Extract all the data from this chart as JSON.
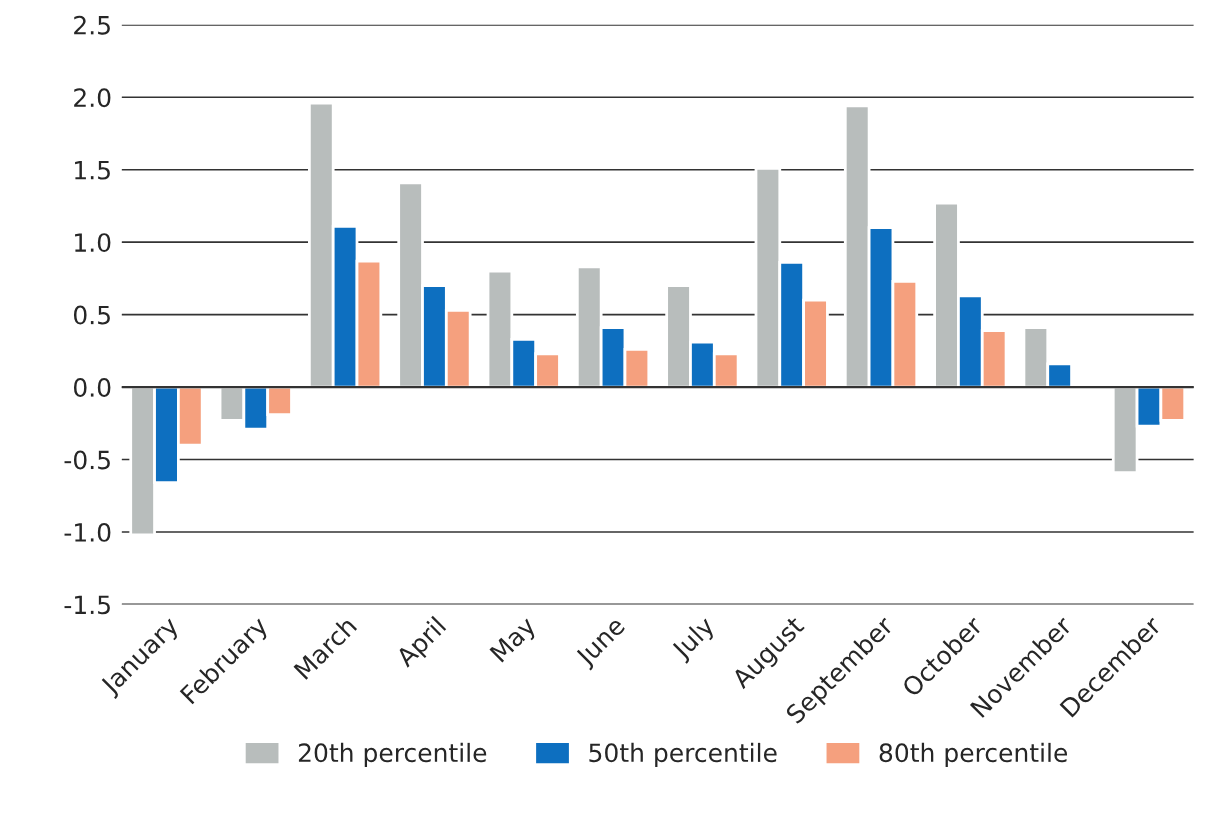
{
  "chart_data": {
    "type": "bar",
    "categories": [
      "January",
      "February",
      "March",
      "April",
      "May",
      "June",
      "July",
      "August",
      "September",
      "October",
      "November",
      "December"
    ],
    "series": [
      {
        "name": "20th percentile",
        "color": "#b8bdbc",
        "values": [
          -1.02,
          -0.23,
          1.96,
          1.41,
          0.8,
          0.83,
          0.7,
          1.51,
          1.94,
          1.27,
          0.41,
          -0.59
        ]
      },
      {
        "name": "50th percentile",
        "color": "#0d6fc0",
        "values": [
          -0.66,
          -0.29,
          1.11,
          0.7,
          0.33,
          0.41,
          0.31,
          0.86,
          1.1,
          0.63,
          0.16,
          -0.27
        ]
      },
      {
        "name": "80th percentile",
        "color": "#f5a07e",
        "values": [
          -0.4,
          -0.19,
          0.87,
          0.53,
          0.23,
          0.26,
          0.23,
          0.6,
          0.73,
          0.39,
          null,
          -0.23
        ]
      }
    ],
    "ylim": [
      -1.5,
      2.5
    ],
    "yticks": [
      {
        "value": -1.5,
        "label": "-1.5"
      },
      {
        "value": -1.0,
        "label": "-1.0"
      },
      {
        "value": -0.5,
        "label": "-0.5"
      },
      {
        "value": 0.0,
        "label": "0.0"
      },
      {
        "value": 0.5,
        "label": "0.5"
      },
      {
        "value": 1.0,
        "label": "1.0"
      },
      {
        "value": 1.5,
        "label": "1.5"
      },
      {
        "value": 2.0,
        "label": "2.0"
      },
      {
        "value": 2.5,
        "label": "2.5"
      }
    ],
    "grid": "y",
    "legend": "bottom"
  }
}
